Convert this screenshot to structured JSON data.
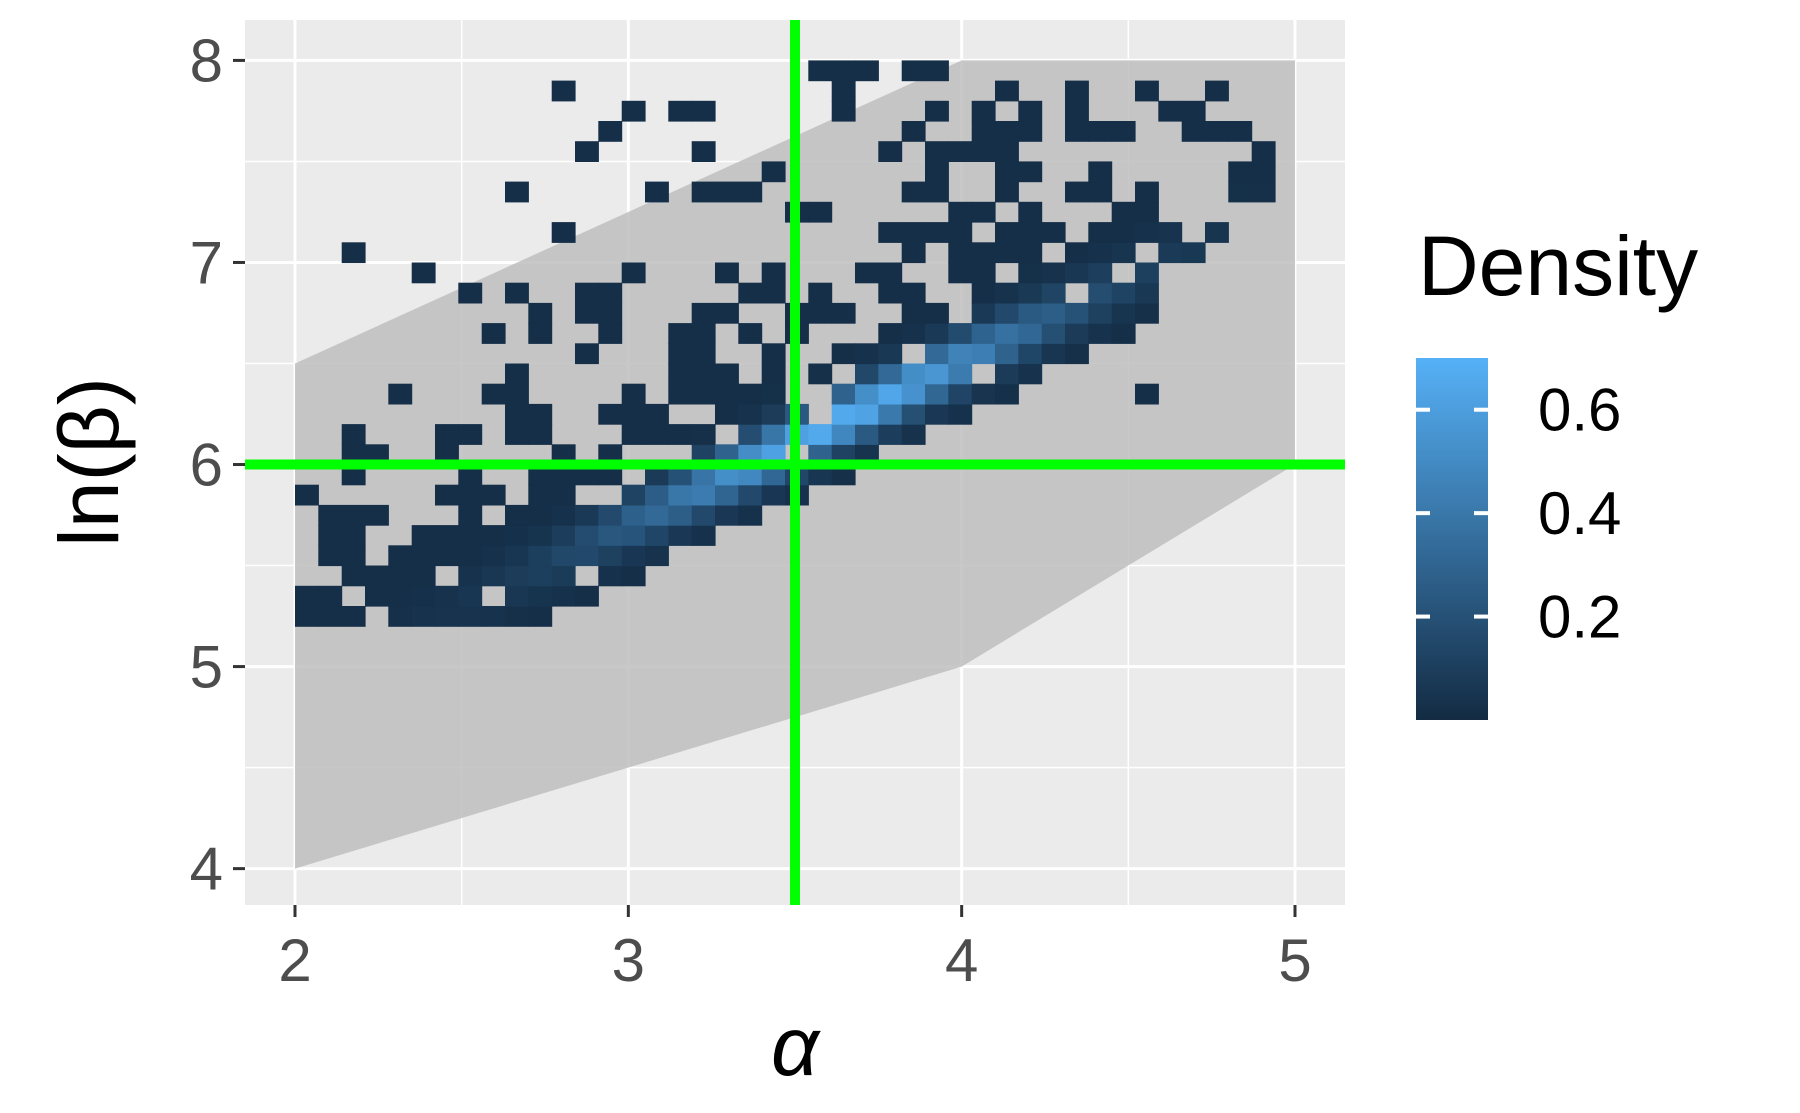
{
  "chart_data": {
    "type": "heatmap",
    "title": "",
    "xlabel": "α",
    "ylabel": "ln(β)",
    "xlim": [
      1.85,
      5.15
    ],
    "ylim": [
      3.82,
      8.2
    ],
    "x_ticks": [
      2,
      3,
      4,
      5
    ],
    "x_tick_labels": [
      "2",
      "3",
      "4",
      "5"
    ],
    "y_ticks": [
      4,
      5,
      6,
      7,
      8
    ],
    "y_tick_labels": [
      "4",
      "5",
      "6",
      "7",
      "8"
    ],
    "grid": true,
    "reference_lines": {
      "x": 3.5,
      "y": 6.0,
      "color": "#00ff00"
    },
    "prior_region": {
      "color": "#bebebe",
      "polygon": [
        [
          2.0,
          4.0
        ],
        [
          2.0,
          6.5
        ],
        [
          4.0,
          8.0
        ],
        [
          5.0,
          8.0
        ],
        [
          5.0,
          6.0
        ],
        [
          4.0,
          5.0
        ],
        [
          3.5,
          4.75
        ],
        [
          2.0,
          4.0
        ]
      ]
    },
    "bin_size": {
      "x": 0.07,
      "y": 0.1
    },
    "density_ridge": {
      "x0": 3.6,
      "y0": 6.17,
      "slope": 0.8,
      "x_range": [
        2.0,
        4.9
      ]
    },
    "legend": {
      "title": "Density",
      "position": "right",
      "range": [
        0,
        0.7
      ],
      "breaks": [
        0.2,
        0.4,
        0.6
      ],
      "labels": [
        "0.2",
        "0.4",
        "0.6"
      ],
      "low_color": "#132b43",
      "high_color": "#56b1f7"
    }
  }
}
